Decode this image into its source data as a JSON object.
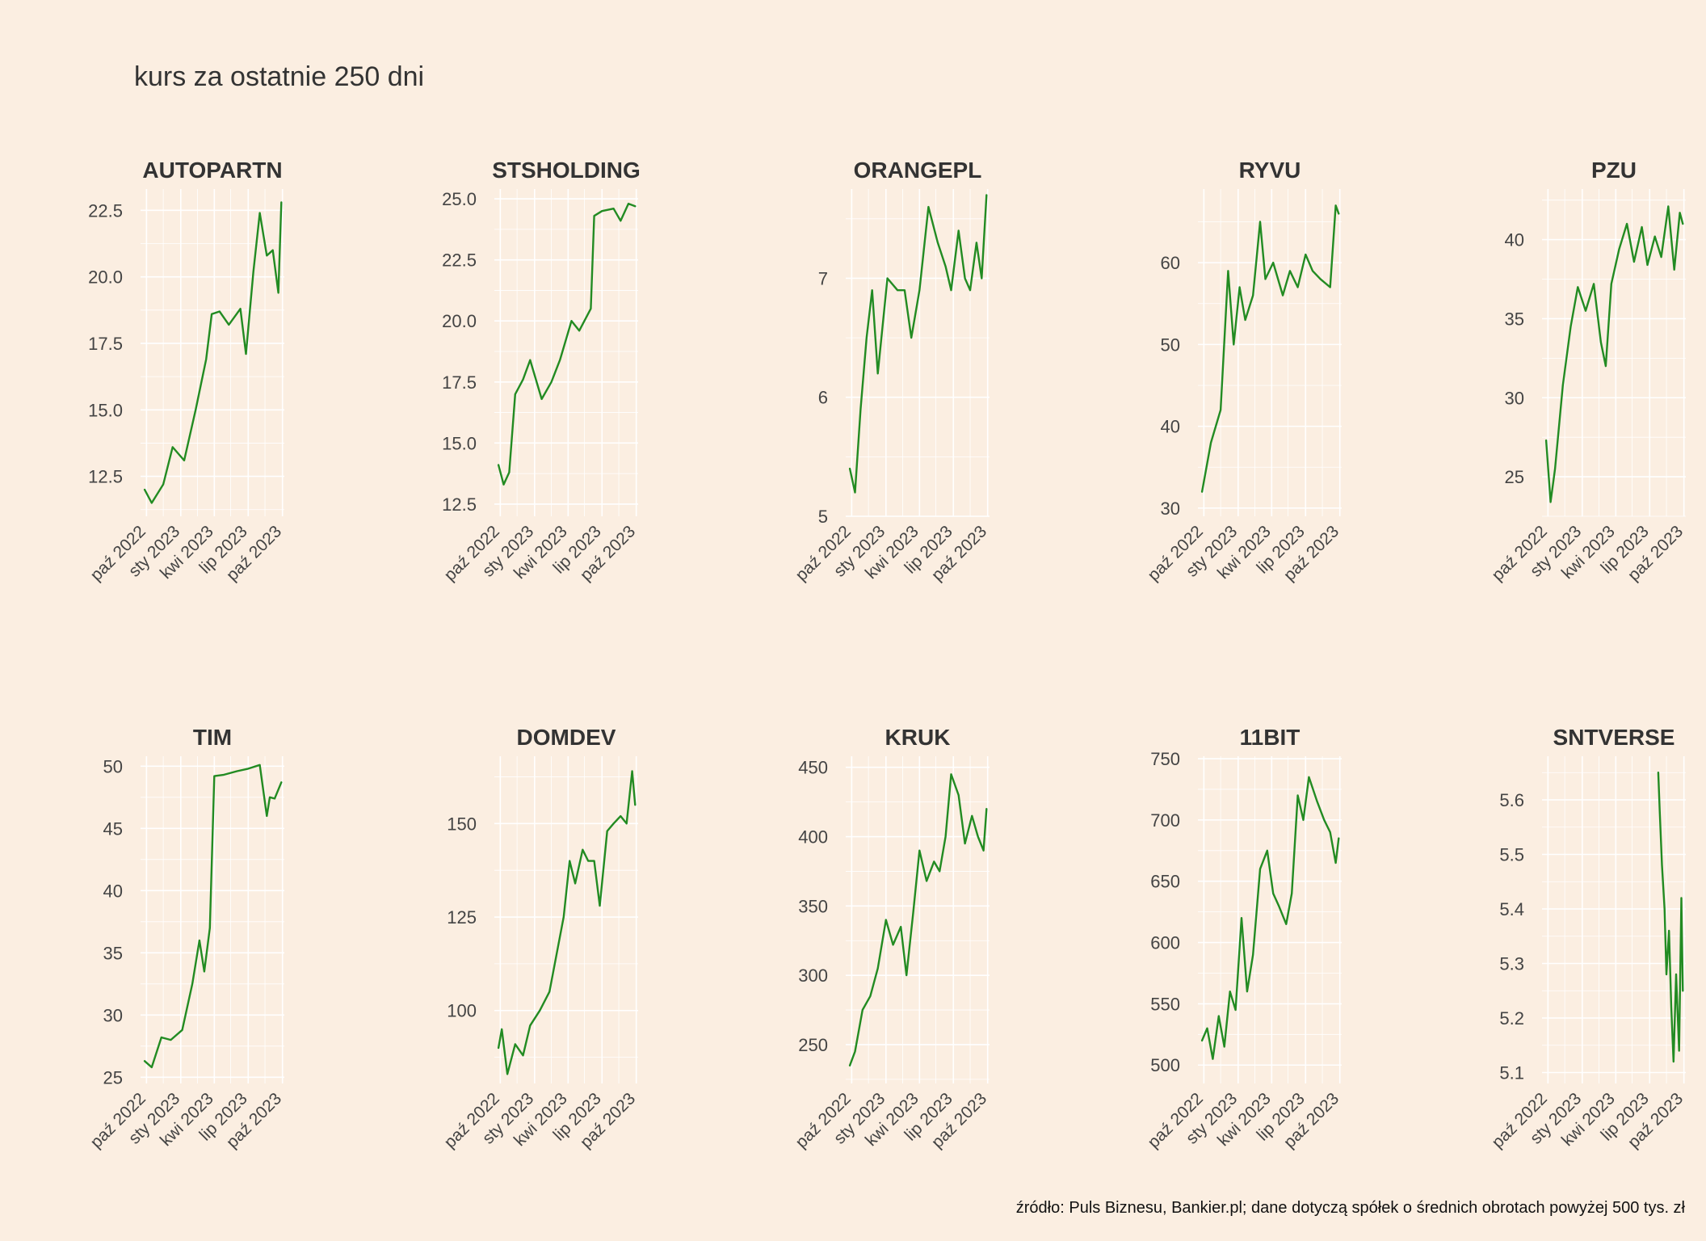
{
  "title": "kurs za ostatnie 250 dni",
  "caption": "źródło: Puls Biznesu, Bankier.pl; dane dotyczą spółek o średnich obrotach powyżej 500 tys. zł",
  "colors": {
    "background": "#FBEEE1",
    "line": "#228B22",
    "grid": "#FFFFFF"
  },
  "chart_data": [
    {
      "type": "line",
      "title": "AUTOPARTN",
      "x_ticks": [
        "paź 2022",
        "sty 2023",
        "kwi 2023",
        "lip 2023",
        "paź 2023"
      ],
      "y_ticks": [
        12.5,
        15.0,
        17.5,
        20.0,
        22.5
      ],
      "ylim": [
        11.0,
        23.3
      ],
      "x": [
        "2022-09-26",
        "2022-10-15",
        "2022-11-15",
        "2022-12-10",
        "2023-01-10",
        "2023-02-10",
        "2023-03-10",
        "2023-03-25",
        "2023-04-15",
        "2023-05-10",
        "2023-06-10",
        "2023-06-25",
        "2023-07-15",
        "2023-08-01",
        "2023-08-20",
        "2023-09-05",
        "2023-09-20",
        "2023-09-28"
      ],
      "y": [
        12.0,
        11.5,
        12.2,
        13.6,
        13.1,
        15.0,
        16.9,
        18.6,
        18.7,
        18.2,
        18.8,
        17.1,
        20.2,
        22.4,
        20.8,
        21.0,
        19.4,
        22.8
      ]
    },
    {
      "type": "line",
      "title": "STSHOLDING",
      "x_ticks": [
        "paź 2022",
        "sty 2023",
        "kwi 2023",
        "lip 2023",
        "paź 2023"
      ],
      "y_ticks": [
        12.5,
        15.0,
        17.5,
        20.0,
        22.5,
        25.0
      ],
      "ylim": [
        12.0,
        25.4
      ],
      "x": [
        "2022-09-26",
        "2022-10-10",
        "2022-10-25",
        "2022-11-10",
        "2022-12-01",
        "2022-12-20",
        "2023-01-20",
        "2023-02-15",
        "2023-03-10",
        "2023-04-10",
        "2023-05-01",
        "2023-06-01",
        "2023-06-10",
        "2023-07-01",
        "2023-08-01",
        "2023-08-20",
        "2023-09-10",
        "2023-09-28"
      ],
      "y": [
        14.1,
        13.3,
        13.8,
        17.0,
        17.6,
        18.4,
        16.8,
        17.5,
        18.4,
        20.0,
        19.6,
        20.5,
        24.3,
        24.5,
        24.6,
        24.1,
        24.8,
        24.7
      ]
    },
    {
      "type": "line",
      "title": "ORANGEPL",
      "x_ticks": [
        "paź 2022",
        "sty 2023",
        "kwi 2023",
        "lip 2023",
        "paź 2023"
      ],
      "y_ticks": [
        5,
        6,
        7
      ],
      "ylim": [
        5.0,
        7.75
      ],
      "x": [
        "2022-09-26",
        "2022-10-10",
        "2022-10-25",
        "2022-11-10",
        "2022-11-25",
        "2022-12-10",
        "2023-01-05",
        "2023-02-01",
        "2023-02-20",
        "2023-03-10",
        "2023-04-01",
        "2023-04-25",
        "2023-05-20",
        "2023-06-10",
        "2023-06-25",
        "2023-07-15",
        "2023-08-01",
        "2023-08-15",
        "2023-09-01",
        "2023-09-15",
        "2023-09-28"
      ],
      "y": [
        5.4,
        5.2,
        5.9,
        6.5,
        6.9,
        6.2,
        7.0,
        6.9,
        6.9,
        6.5,
        6.9,
        7.6,
        7.3,
        7.1,
        6.9,
        7.4,
        7.0,
        6.9,
        7.3,
        7.0,
        7.7
      ]
    },
    {
      "type": "line",
      "title": "RYVU",
      "x_ticks": [
        "paź 2022",
        "sty 2023",
        "kwi 2023",
        "lip 2023",
        "paź 2023"
      ],
      "y_ticks": [
        30,
        40,
        50,
        60
      ],
      "ylim": [
        29.0,
        69.0
      ],
      "x": [
        "2022-09-26",
        "2022-10-20",
        "2022-11-15",
        "2022-12-05",
        "2022-12-20",
        "2023-01-05",
        "2023-01-20",
        "2023-02-10",
        "2023-03-01",
        "2023-03-15",
        "2023-04-05",
        "2023-05-01",
        "2023-05-20",
        "2023-06-10",
        "2023-07-01",
        "2023-07-20",
        "2023-08-10",
        "2023-09-05",
        "2023-09-20",
        "2023-09-28"
      ],
      "y": [
        32,
        38,
        42,
        59,
        50,
        57,
        53,
        56,
        65,
        58,
        60,
        56,
        59,
        57,
        61,
        59,
        58,
        57,
        67,
        66
      ]
    },
    {
      "type": "line",
      "title": "PZU",
      "x_ticks": [
        "paź 2022",
        "sty 2023",
        "kwi 2023",
        "lip 2023",
        "paź 2023"
      ],
      "y_ticks": [
        25,
        30,
        35,
        40
      ],
      "ylim": [
        22.5,
        43.2
      ],
      "x": [
        "2022-09-26",
        "2022-10-08",
        "2022-10-20",
        "2022-11-10",
        "2022-12-01",
        "2022-12-20",
        "2023-01-10",
        "2023-02-01",
        "2023-02-20",
        "2023-03-05",
        "2023-03-20",
        "2023-04-10",
        "2023-05-01",
        "2023-05-20",
        "2023-06-10",
        "2023-06-25",
        "2023-07-15",
        "2023-08-01",
        "2023-08-20",
        "2023-09-05",
        "2023-09-20",
        "2023-09-28"
      ],
      "y": [
        27.3,
        23.4,
        25.5,
        30.8,
        34.5,
        37.0,
        35.5,
        37.2,
        33.5,
        32.0,
        37.2,
        39.4,
        41.0,
        38.6,
        40.8,
        38.4,
        40.2,
        38.9,
        42.1,
        38.1,
        41.7,
        41.0
      ]
    },
    {
      "type": "line",
      "title": "TIM",
      "x_ticks": [
        "paź 2022",
        "sty 2023",
        "kwi 2023",
        "lip 2023",
        "paź 2023"
      ],
      "y_ticks": [
        25,
        30,
        35,
        40,
        45,
        50
      ],
      "ylim": [
        24.5,
        50.8
      ],
      "x": [
        "2022-09-26",
        "2022-10-15",
        "2022-11-10",
        "2022-12-05",
        "2023-01-05",
        "2023-02-01",
        "2023-02-20",
        "2023-03-05",
        "2023-03-20",
        "2023-04-01",
        "2023-04-25",
        "2023-06-01",
        "2023-07-01",
        "2023-08-01",
        "2023-08-20",
        "2023-08-28",
        "2023-09-10",
        "2023-09-28"
      ],
      "y": [
        26.3,
        25.8,
        28.2,
        28.0,
        28.8,
        32.5,
        36.0,
        33.5,
        37.0,
        49.2,
        49.3,
        49.6,
        49.8,
        50.1,
        46.0,
        47.5,
        47.4,
        48.7
      ]
    },
    {
      "type": "line",
      "title": "DOMDEV",
      "x_ticks": [
        "paź 2022",
        "sty 2023",
        "kwi 2023",
        "lip 2023",
        "paź 2023"
      ],
      "y_ticks": [
        100,
        125,
        150
      ],
      "ylim": [
        80.5,
        168.0
      ],
      "x": [
        "2022-09-26",
        "2022-10-05",
        "2022-10-20",
        "2022-11-10",
        "2022-12-01",
        "2022-12-20",
        "2023-01-15",
        "2023-02-10",
        "2023-03-01",
        "2023-03-20",
        "2023-04-05",
        "2023-04-20",
        "2023-05-10",
        "2023-05-25",
        "2023-06-10",
        "2023-06-25",
        "2023-07-15",
        "2023-08-01",
        "2023-08-20",
        "2023-09-05",
        "2023-09-20",
        "2023-09-28"
      ],
      "y": [
        90,
        95,
        83,
        91,
        88,
        96,
        100,
        105,
        115,
        125,
        140,
        134,
        143,
        140,
        140,
        128,
        148,
        150,
        152,
        150,
        164,
        155
      ]
    },
    {
      "type": "line",
      "title": "KRUK",
      "x_ticks": [
        "paź 2022",
        "sty 2023",
        "kwi 2023",
        "lip 2023",
        "paź 2023"
      ],
      "y_ticks": [
        250,
        300,
        350,
        400,
        450
      ],
      "ylim": [
        222.0,
        458.0
      ],
      "x": [
        "2022-09-26",
        "2022-10-10",
        "2022-10-30",
        "2022-11-20",
        "2022-12-10",
        "2023-01-01",
        "2023-01-20",
        "2023-02-10",
        "2023-02-25",
        "2023-03-15",
        "2023-04-01",
        "2023-04-20",
        "2023-05-10",
        "2023-05-25",
        "2023-06-10",
        "2023-06-25",
        "2023-07-15",
        "2023-08-01",
        "2023-08-20",
        "2023-09-05",
        "2023-09-20",
        "2023-09-28"
      ],
      "y": [
        235,
        245,
        275,
        285,
        305,
        340,
        322,
        335,
        300,
        345,
        390,
        368,
        382,
        375,
        400,
        445,
        430,
        395,
        415,
        400,
        390,
        420
      ]
    },
    {
      "type": "line",
      "title": "11BIT",
      "x_ticks": [
        "paź 2022",
        "sty 2023",
        "kwi 2023",
        "lip 2023",
        "paź 2023"
      ],
      "y_ticks": [
        500,
        550,
        600,
        650,
        700,
        750
      ],
      "ylim": [
        485.0,
        752.0
      ],
      "x": [
        "2022-09-26",
        "2022-10-10",
        "2022-10-25",
        "2022-11-10",
        "2022-11-25",
        "2022-12-10",
        "2022-12-25",
        "2023-01-10",
        "2023-01-25",
        "2023-02-10",
        "2023-03-01",
        "2023-03-20",
        "2023-04-05",
        "2023-04-20",
        "2023-05-10",
        "2023-05-25",
        "2023-06-10",
        "2023-06-25",
        "2023-07-10",
        "2023-08-01",
        "2023-08-20",
        "2023-09-05",
        "2023-09-20",
        "2023-09-28"
      ],
      "y": [
        520,
        530,
        505,
        540,
        515,
        560,
        545,
        620,
        560,
        590,
        660,
        675,
        640,
        630,
        615,
        640,
        720,
        700,
        735,
        715,
        700,
        690,
        665,
        685
      ]
    },
    {
      "type": "line",
      "title": "SNTVERSE",
      "x_ticks": [
        "paź 2022",
        "sty 2023",
        "kwi 2023",
        "lip 2023",
        "paź 2023"
      ],
      "y_ticks": [
        5.1,
        5.2,
        5.3,
        5.4,
        5.5,
        5.6
      ],
      "ylim": [
        5.08,
        5.68
      ],
      "x": [
        "2023-07-24",
        "2023-07-28",
        "2023-08-03",
        "2023-08-10",
        "2023-08-15",
        "2023-08-22",
        "2023-08-28",
        "2023-09-03",
        "2023-09-10",
        "2023-09-18",
        "2023-09-24",
        "2023-09-28"
      ],
      "y": [
        5.65,
        5.58,
        5.48,
        5.4,
        5.28,
        5.36,
        5.22,
        5.12,
        5.28,
        5.14,
        5.42,
        5.25
      ]
    }
  ]
}
